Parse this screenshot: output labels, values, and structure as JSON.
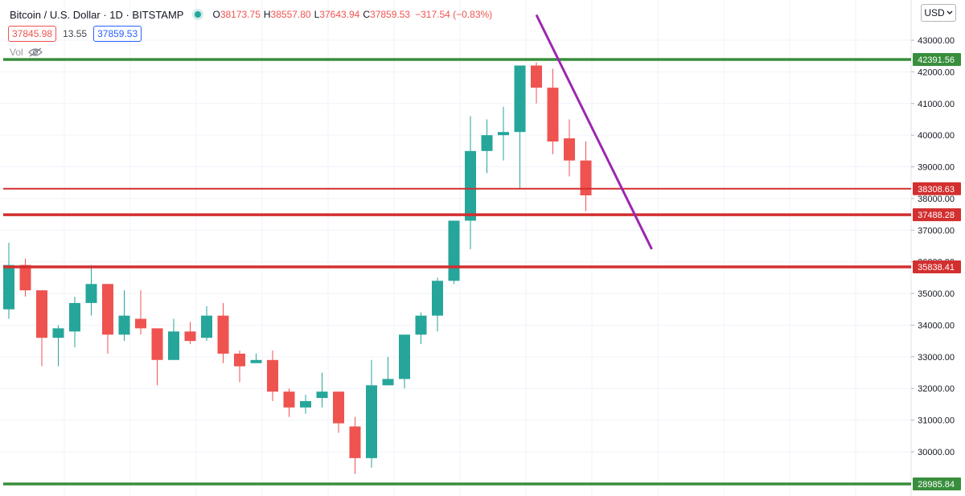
{
  "legend": {
    "symbol": "Bitcoin / U.S. Dollar · 1D · BITSTAMP",
    "open_label": "O",
    "open": "38173.75",
    "high_label": "H",
    "high": "38557.80",
    "low_label": "L",
    "low": "37643.94",
    "close_label": "C",
    "close": "37859.53",
    "change": "−317.54 (−0.83%)"
  },
  "prices": {
    "bid": "37845.98",
    "spread": "13.55",
    "ask": "37859.53"
  },
  "volume": {
    "label": "Vol"
  },
  "currency": {
    "label": "USD",
    "icon": "chevron-down-icon"
  },
  "colors": {
    "up": "#26a69a",
    "down": "#ef5350",
    "support_green": "#388e3c",
    "support_red": "#d32f2f",
    "trendline": "#9c27b0"
  },
  "chart_data": {
    "type": "candlestick",
    "y_axis": {
      "ticks": [
        "43000.00",
        "42000.00",
        "41000.00",
        "40000.00",
        "39000.00",
        "38000.00",
        "37000.00",
        "36000.00",
        "35000.00",
        "34000.00",
        "33000.00",
        "32000.00",
        "31000.00",
        "30000.00"
      ],
      "range": [
        28800,
        43600
      ]
    },
    "candles": [
      [
        34500,
        35900,
        34200,
        36600
      ],
      [
        35900,
        35100,
        34900,
        36100
      ],
      [
        35100,
        33600,
        32700,
        35100
      ],
      [
        33600,
        33900,
        32700,
        34000
      ],
      [
        33800,
        34700,
        33300,
        34900
      ],
      [
        34700,
        35300,
        34300,
        35900
      ],
      [
        35300,
        33700,
        33100,
        35300
      ],
      [
        33700,
        34300,
        33500,
        35100
      ],
      [
        34200,
        33900,
        33700,
        35100
      ],
      [
        33900,
        32900,
        32100,
        33900
      ],
      [
        32900,
        33800,
        32900,
        34200
      ],
      [
        33800,
        33500,
        33400,
        34100
      ],
      [
        33600,
        34300,
        33500,
        34600
      ],
      [
        34300,
        33100,
        32800,
        34700
      ],
      [
        33100,
        32700,
        32200,
        33200
      ],
      [
        32800,
        32900,
        32800,
        33100
      ],
      [
        32900,
        31900,
        31600,
        33200
      ],
      [
        31900,
        31400,
        31100,
        32000
      ],
      [
        31400,
        31600,
        31200,
        31800
      ],
      [
        31700,
        31900,
        31400,
        32500
      ],
      [
        31900,
        30900,
        30600,
        31900
      ],
      [
        30800,
        29800,
        29300,
        31100
      ],
      [
        29800,
        32100,
        29500,
        32900
      ],
      [
        32100,
        32300,
        32100,
        33000
      ],
      [
        32300,
        33700,
        32000,
        33700
      ],
      [
        33700,
        34300,
        33400,
        34400
      ],
      [
        34300,
        35400,
        33800,
        35500
      ],
      [
        35400,
        37300,
        35300,
        37300
      ],
      [
        37300,
        39500,
        36400,
        40600
      ],
      [
        39500,
        40000,
        38800,
        40500
      ],
      [
        40000,
        40100,
        39200,
        40900
      ],
      [
        40100,
        42200,
        38300,
        42200
      ],
      [
        42200,
        41500,
        41000,
        42300
      ],
      [
        41500,
        39800,
        39400,
        42100
      ],
      [
        39900,
        39200,
        38700,
        40500
      ],
      [
        39200,
        38100,
        37600,
        39800
      ]
    ],
    "horizontal_lines": [
      {
        "value": 42391.56,
        "label": "42391.56",
        "color": "#388e3c"
      },
      {
        "value": 38308.63,
        "label": "38308.63",
        "color": "#d32f2f"
      },
      {
        "value": 37488.28,
        "label": "37488.28",
        "color": "#d32f2f"
      },
      {
        "value": 35838.41,
        "label": "35838.41",
        "color": "#d32f2f"
      },
      {
        "value": 28985.84,
        "label": "28985.84",
        "color": "#388e3c"
      }
    ],
    "trendline": {
      "start": [
        32,
        43800
      ],
      "end": [
        39,
        36400
      ],
      "color": "#9c27b0"
    }
  }
}
